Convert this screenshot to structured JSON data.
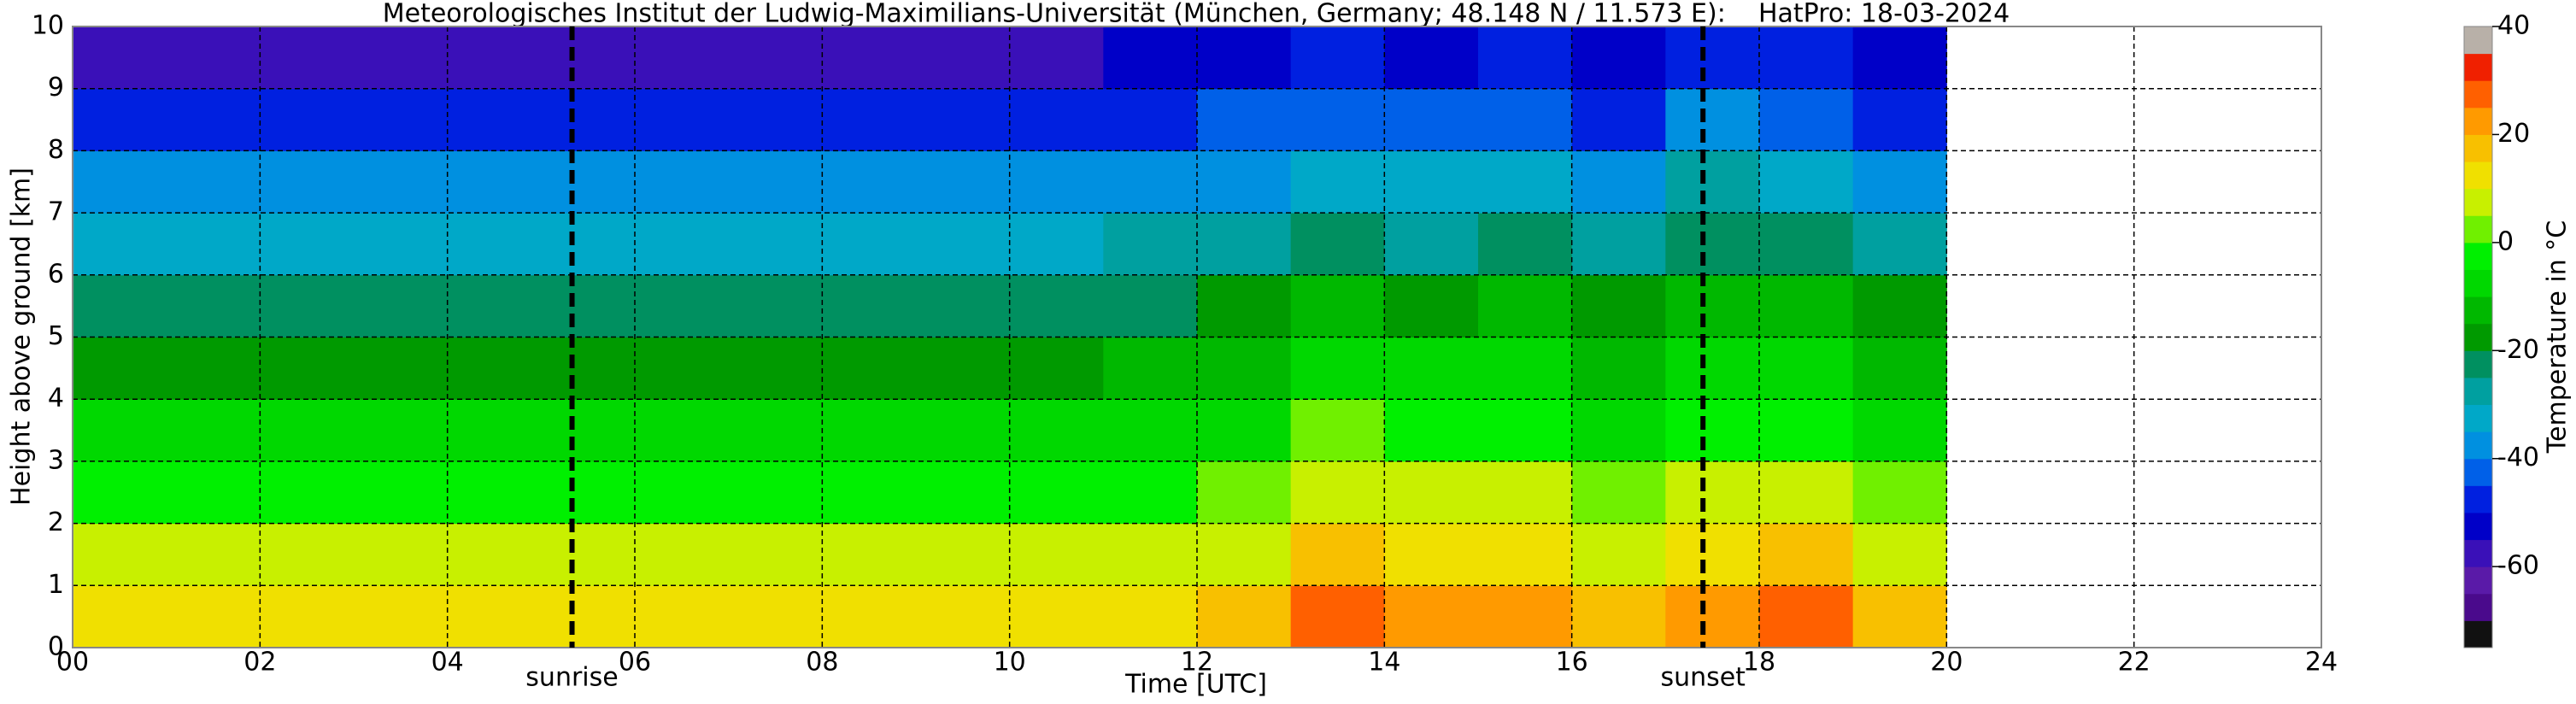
{
  "chart_data": {
    "type": "heatmap",
    "title": "Meteorologisches Institut der Ludwig-Maximilians-Universität (München, Germany; 48.148 N / 11.573 E):    HatPro: 18-03-2024",
    "x_label": "Time [UTC]",
    "y_label": "Height above ground [km]",
    "xlim": [
      0,
      24
    ],
    "ylim": [
      0,
      10
    ],
    "xticks": [
      {
        "value": 0,
        "label": "00"
      },
      {
        "value": 2,
        "label": "02"
      },
      {
        "value": 4,
        "label": "04"
      },
      {
        "value": 6,
        "label": "06"
      },
      {
        "value": 8,
        "label": "08"
      },
      10,
      12,
      14,
      16,
      18,
      20,
      22,
      24
    ],
    "yticks": [
      0,
      1,
      2,
      3,
      4,
      5,
      6,
      7,
      8,
      9,
      10
    ],
    "grid": true,
    "x": [
      0,
      1,
      2,
      3,
      4,
      5,
      6,
      7,
      8,
      9,
      10,
      11,
      12,
      13,
      14,
      15,
      16,
      17,
      18,
      19,
      20
    ],
    "y": [
      0,
      1,
      2,
      3,
      4,
      5,
      6,
      7,
      8,
      9,
      10
    ],
    "values": [
      [
        12,
        5,
        -2,
        -10,
        -17,
        -24,
        -32,
        -40,
        -50,
        -58
      ],
      [
        12,
        5,
        -2,
        -10,
        -17,
        -24,
        -32,
        -40,
        -50,
        -58
      ],
      [
        12,
        5,
        -2,
        -10,
        -17,
        -24,
        -32,
        -40,
        -50,
        -58
      ],
      [
        12,
        5,
        -2,
        -10,
        -17,
        -24,
        -32,
        -40,
        -50,
        -58
      ],
      [
        12,
        5,
        -2,
        -10,
        -17,
        -24,
        -32,
        -40,
        -50,
        -58
      ],
      [
        12,
        5,
        -2,
        -10,
        -17,
        -24,
        -32,
        -40,
        -50,
        -58
      ],
      [
        12,
        5,
        -2,
        -10,
        -17,
        -24,
        -32,
        -40,
        -50,
        -58
      ],
      [
        12,
        5,
        -2,
        -10,
        -17,
        -24,
        -32,
        -40,
        -50,
        -58
      ],
      [
        12,
        5,
        -2,
        -10,
        -17,
        -24,
        -32,
        -40,
        -50,
        -58
      ],
      [
        12,
        5,
        -2,
        -10,
        -17,
        -24,
        -32,
        -40,
        -50,
        -58
      ],
      [
        12,
        5,
        -2,
        -10,
        -17,
        -24,
        -32,
        -40,
        -50,
        -58
      ],
      [
        14,
        6,
        -3,
        -10,
        -15,
        -22,
        -30,
        -38,
        -46,
        -55
      ],
      [
        17,
        9,
        1,
        -6,
        -12,
        -20,
        -28,
        -36,
        -44,
        -52
      ],
      [
        26,
        16,
        8,
        0,
        -6,
        -14,
        -22,
        -32,
        -42,
        -50
      ],
      [
        24,
        13,
        5,
        -3,
        -10,
        -18,
        -26,
        -34,
        -44,
        -52
      ],
      [
        24,
        14,
        6,
        -1,
        -7,
        -14,
        -22,
        -32,
        -42,
        -50
      ],
      [
        16,
        8,
        0,
        -7,
        -14,
        -20,
        -28,
        -36,
        -46,
        -54
      ],
      [
        23,
        14,
        6,
        -1,
        -6,
        -14,
        -22,
        -30,
        -40,
        -50
      ],
      [
        25,
        15,
        7,
        -1,
        -7,
        -14,
        -22,
        -32,
        -42,
        -50
      ],
      [
        16,
        8,
        0,
        -7,
        -13,
        -20,
        -28,
        -36,
        -46,
        -54
      ]
    ],
    "levels": [
      -75,
      -70,
      -65,
      -60,
      -55,
      -50,
      -45,
      -40,
      -35,
      -30,
      -25,
      -20,
      -15,
      -10,
      -5,
      0,
      5,
      10,
      15,
      20,
      25,
      30,
      35,
      40
    ],
    "colors": [
      "#111111",
      "#4a0a8c",
      "#5a1aa8",
      "#3a10b8",
      "#0000c8",
      "#0020e0",
      "#0060e8",
      "#0090e0",
      "#00a8c8",
      "#00a0a0",
      "#009060",
      "#009a00",
      "#00b800",
      "#00d800",
      "#00f000",
      "#70f000",
      "#c8f000",
      "#f0e000",
      "#f8c000",
      "#ff9a00",
      "#ff6000",
      "#f02000",
      "#b8b0a8"
    ],
    "colorbar_label": "Temperature in °C",
    "colorbar_ticks": [
      -60,
      -40,
      -20,
      0,
      20,
      40
    ],
    "annotations": [
      {
        "text": "sunrise",
        "x": 5.33
      },
      {
        "text": "sunset",
        "x": 17.4
      }
    ]
  }
}
